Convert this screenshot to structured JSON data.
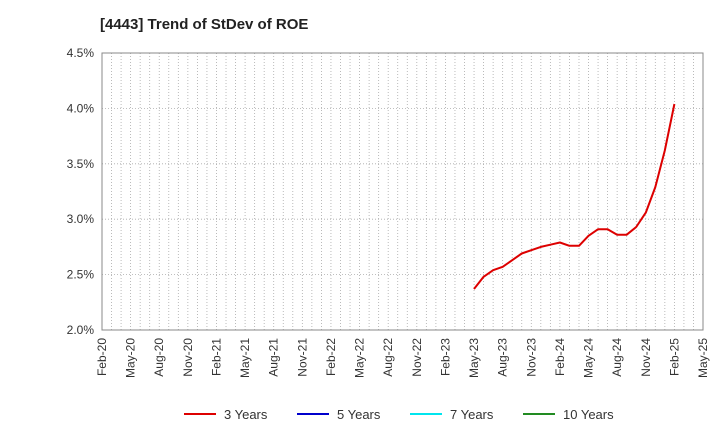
{
  "chart_data": {
    "type": "line",
    "title": "[4443]  Trend of StDev of ROE",
    "xlabel": "",
    "ylabel": "",
    "ylim": [
      2.0,
      4.5
    ],
    "y_unit": "%",
    "y_ticks": [
      "2.0%",
      "2.5%",
      "3.0%",
      "3.5%",
      "4.0%",
      "4.5%"
    ],
    "x_ticks": [
      "Feb-20",
      "May-20",
      "Aug-20",
      "Nov-20",
      "Feb-21",
      "May-21",
      "Aug-21",
      "Nov-21",
      "Feb-22",
      "May-22",
      "Aug-22",
      "Nov-22",
      "Feb-23",
      "May-23",
      "Aug-23",
      "Nov-23",
      "Feb-24",
      "May-24",
      "Aug-24",
      "Nov-24",
      "Feb-25",
      "May-25"
    ],
    "grid": true,
    "legend_position": "bottom",
    "series": [
      {
        "name": "3 Years",
        "color": "#dd0000",
        "points": [
          [
            "May-23",
            2.37
          ],
          [
            "Jun-23",
            2.48
          ],
          [
            "Jul-23",
            2.54
          ],
          [
            "Aug-23",
            2.57
          ],
          [
            "Sep-23",
            2.63
          ],
          [
            "Oct-23",
            2.69
          ],
          [
            "Nov-23",
            2.72
          ],
          [
            "Dec-23",
            2.75
          ],
          [
            "Jan-24",
            2.77
          ],
          [
            "Feb-24",
            2.79
          ],
          [
            "Mar-24",
            2.76
          ],
          [
            "Apr-24",
            2.76
          ],
          [
            "May-24",
            2.85
          ],
          [
            "Jun-24",
            2.91
          ],
          [
            "Jul-24",
            2.91
          ],
          [
            "Aug-24",
            2.86
          ],
          [
            "Sep-24",
            2.86
          ],
          [
            "Oct-24",
            2.93
          ],
          [
            "Nov-24",
            3.06
          ],
          [
            "Dec-24",
            3.29
          ],
          [
            "Jan-25",
            3.62
          ],
          [
            "Feb-25",
            4.04
          ]
        ]
      },
      {
        "name": "5 Years",
        "color": "#0000cc",
        "points": []
      },
      {
        "name": "7 Years",
        "color": "#00e5ee",
        "points": []
      },
      {
        "name": "10 Years",
        "color": "#228b22",
        "points": []
      }
    ]
  }
}
